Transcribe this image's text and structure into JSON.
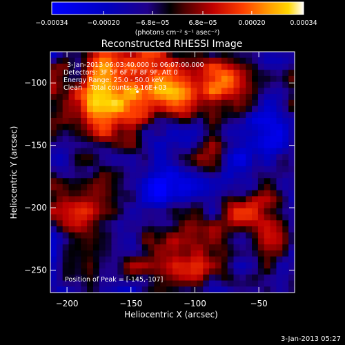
{
  "chart_data": {
    "type": "heatmap",
    "title": "Reconstructed RHESSI Image",
    "xlabel": "Heliocentric X (arcsec)",
    "ylabel": "Heliocentric Y (arcsec)",
    "xlim": [
      -213,
      -22
    ],
    "ylim": [
      -268,
      -75
    ],
    "x_ticks": [
      -200,
      -150,
      -100,
      -50
    ],
    "x_tick_labels": [
      "−200",
      "−150",
      "−100",
      "−50"
    ],
    "y_ticks": [
      -100,
      -150,
      -200,
      -250
    ],
    "y_tick_labels": [
      "−100",
      "−150",
      "−200",
      "−250"
    ],
    "colorbar": {
      "range": [
        -0.00034,
        0.00034
      ],
      "tick_values": [
        -0.00034,
        -0.0002,
        -6.8e-05,
        6.8e-05,
        0.0002,
        0.00034
      ],
      "tick_labels": [
        "−0.00034",
        "−0.00020",
        "−6.8e−05",
        "6.8e−05",
        "0.00020",
        "0.00034"
      ],
      "unit_label": "(photons cm⁻² s⁻¹ asec⁻²)",
      "colormap": [
        "#0000ff",
        "#0000c0",
        "#20008a",
        "#000000",
        "#500000",
        "#c00000",
        "#ff4000",
        "#ff9a00",
        "#ffd700",
        "#ffffff"
      ]
    },
    "info_lines": [
      "3-Jan-2013 06:03:40.000 to 06:07:00.000",
      "Detectors: 3F 5F 6F 7F 8F 9F, Att 0",
      "Energy Range: 25.0 - 50.0 keV",
      "Clean    Total counts: 9.16E+03"
    ],
    "peak_label": "Position of Peak = [-145,-107]",
    "peak_position": [
      -145,
      -107
    ],
    "grid": false
  },
  "timestamp": "3-Jan-2013 05:27"
}
